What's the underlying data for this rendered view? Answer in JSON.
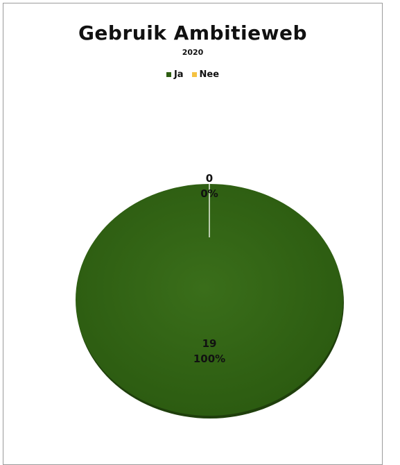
{
  "chart_data": {
    "type": "pie",
    "title": "Gebruik Ambitieweb",
    "subtitle": "2020",
    "series": [
      {
        "name": "Ja",
        "value": 19,
        "percent_label": "100%",
        "color": "#2e5e12"
      },
      {
        "name": "Nee",
        "value": 0,
        "percent_label": "0%",
        "color": "#f5c242"
      }
    ],
    "legend": "top"
  }
}
